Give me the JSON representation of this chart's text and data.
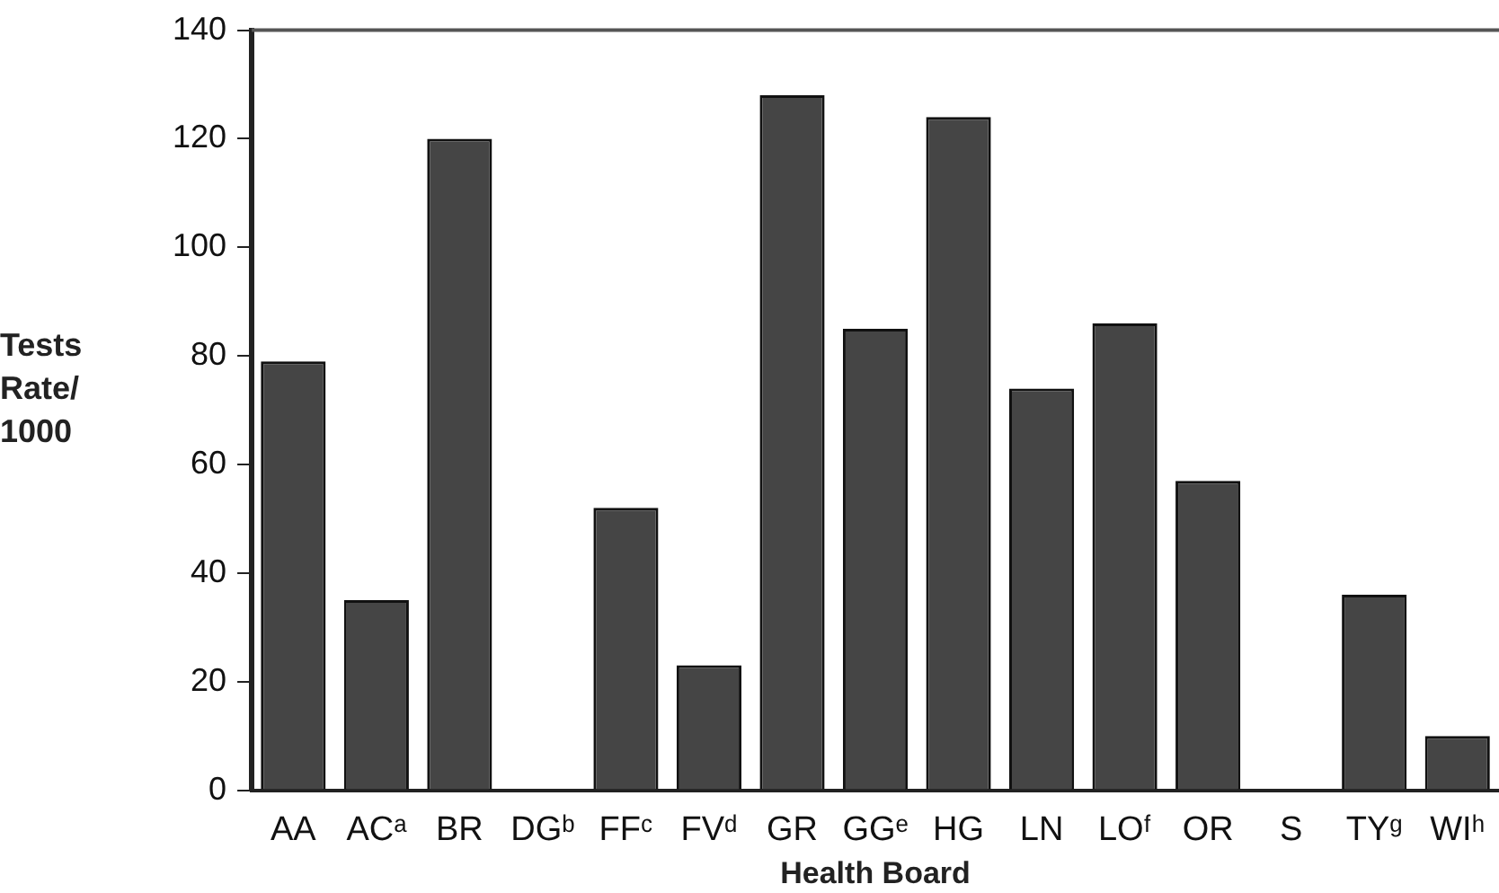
{
  "chart_data": {
    "type": "bar",
    "xlabel": "Health Board",
    "ylabel": "Tests Rate/ 1000",
    "categories": [
      "AA",
      "ACᵃ",
      "BR",
      "DGᵇ",
      "FFᶜ",
      "FVᵈ",
      "GR",
      "GGᵉ",
      "HG",
      "LN",
      "LOᶠ",
      "OR",
      "S",
      "TYᵍ",
      "WIʰ"
    ],
    "values": [
      79,
      35,
      120,
      0,
      52,
      23,
      128,
      85,
      124,
      74,
      86,
      57,
      0,
      36,
      10
    ],
    "color": "#454545",
    "ylim": [
      0,
      140
    ],
    "yticks": [
      0,
      20,
      40,
      60,
      80,
      100,
      120,
      140
    ],
    "grid": false,
    "legend": false
  }
}
